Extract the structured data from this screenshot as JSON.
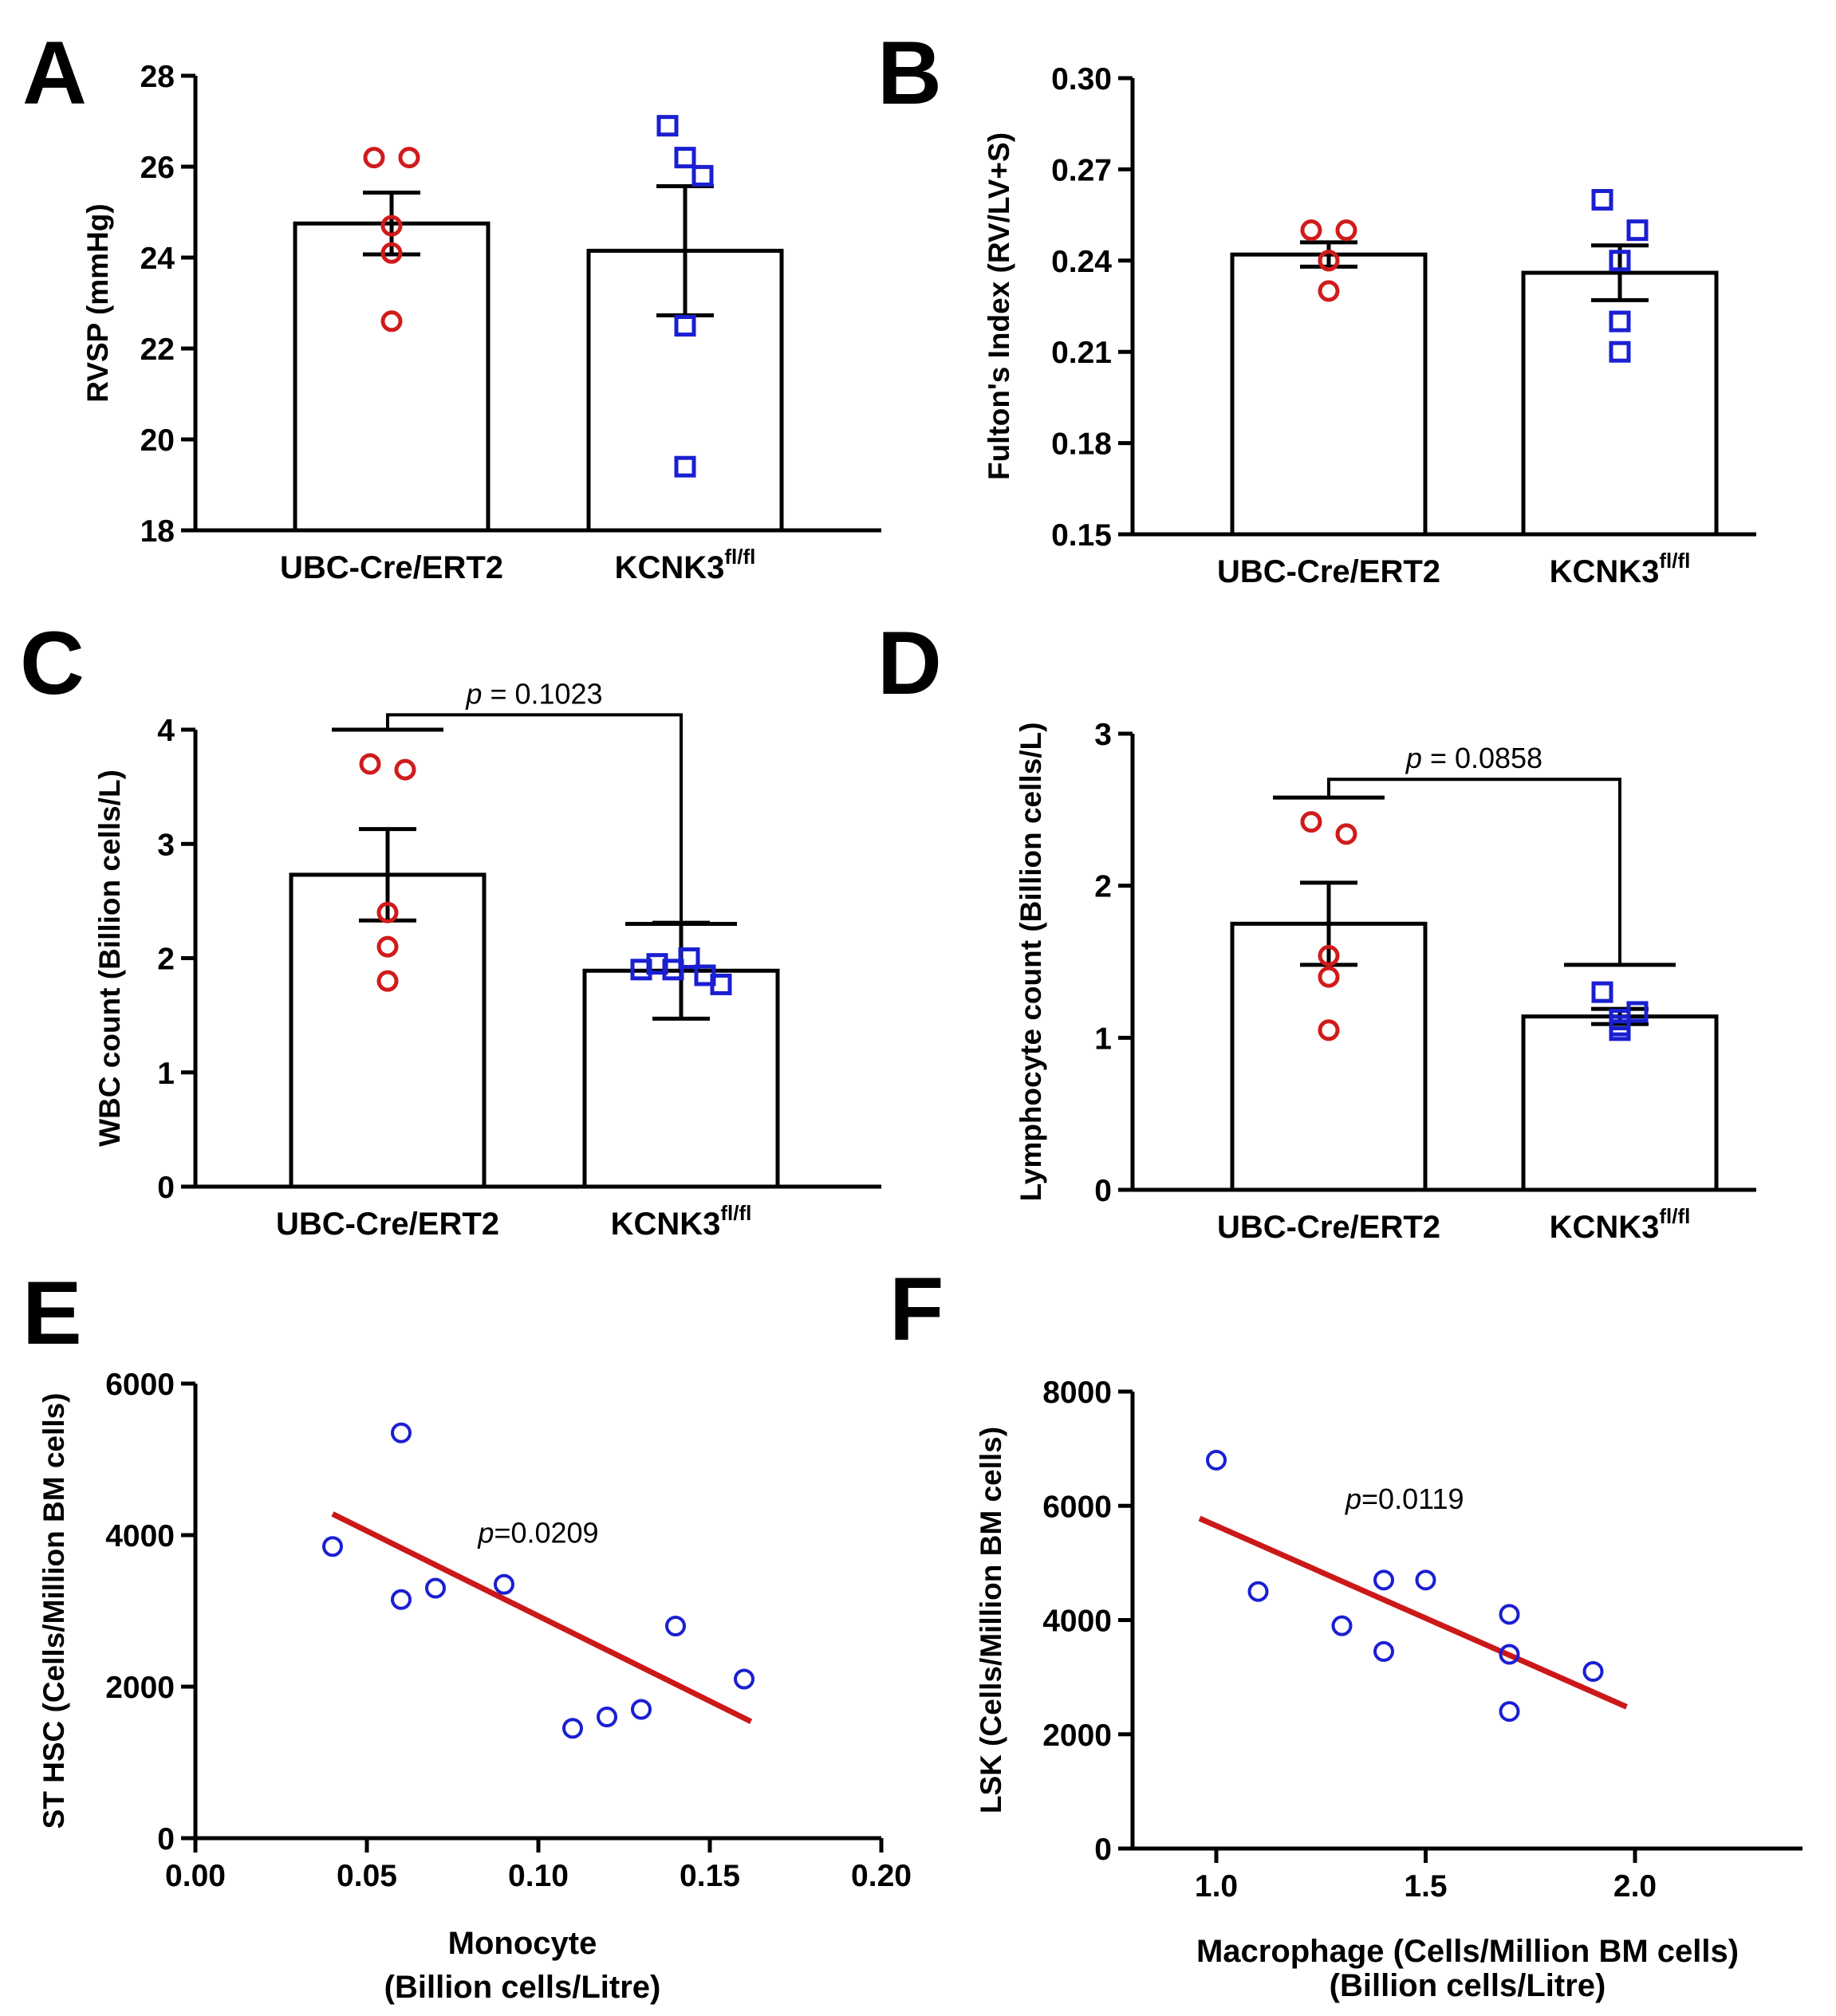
{
  "chart_data": [
    {
      "panel": "A",
      "type": "bar",
      "ylabel": "RVSP (mmHg)",
      "ylim": [
        18,
        28
      ],
      "yticks": [
        "18",
        "20",
        "22",
        "24",
        "26",
        "28"
      ],
      "categories": [
        "UBC-Cre/ERT2",
        "KCNK3"
      ],
      "category_sup": [
        "",
        "fl/fl"
      ],
      "means": [
        24.75,
        24.15
      ],
      "sem": [
        0.68,
        1.42
      ],
      "points": [
        [
          26.2,
          26.2,
          24.7,
          24.1,
          22.6
        ],
        [
          26.9,
          25.8,
          26.2,
          22.5,
          19.4
        ]
      ],
      "colors": [
        "#d01b1b",
        "#1a1fd1"
      ],
      "markers": [
        "circle",
        "square"
      ]
    },
    {
      "panel": "B",
      "type": "bar",
      "ylabel": "Fulton's Index (RV/LV+S)",
      "ylim": [
        0.15,
        0.3
      ],
      "yticks": [
        "0.15",
        "0.18",
        "0.21",
        "0.24",
        "0.27",
        "0.30"
      ],
      "categories": [
        "UBC-Cre/ERT2",
        "KCNK3"
      ],
      "category_sup": [
        "",
        "fl/fl"
      ],
      "means": [
        0.242,
        0.236
      ],
      "sem": [
        0.004,
        0.009
      ],
      "points": [
        [
          0.25,
          0.25,
          0.24,
          0.24,
          0.23
        ],
        [
          0.26,
          0.25,
          0.24,
          0.22,
          0.21
        ]
      ],
      "colors": [
        "#d01b1b",
        "#1a1fd1"
      ],
      "markers": [
        "circle",
        "square"
      ]
    },
    {
      "panel": "C",
      "type": "bar",
      "ylabel": "WBC count (Billion cells/L)",
      "ylim": [
        0,
        4
      ],
      "yticks": [
        "0",
        "1",
        "2",
        "3",
        "4"
      ],
      "categories": [
        "UBC-Cre/ERT2",
        "KCNK3"
      ],
      "category_sup": [
        "",
        "fl/fl"
      ],
      "means": [
        2.73,
        1.89
      ],
      "sem": [
        0.4,
        0.42
      ],
      "points": [
        [
          3.7,
          3.65,
          2.4,
          2.1,
          1.8
        ],
        [
          1.9,
          1.95,
          1.9,
          2.0,
          1.85,
          1.77
        ]
      ],
      "colors": [
        "#d01b1b",
        "#1a1fd1"
      ],
      "markers": [
        "circle",
        "square"
      ],
      "pvalue": "= 0.1023",
      "bracket_y": [
        4.0,
        2.3
      ],
      "bracket_top": 4.13
    },
    {
      "panel": "D",
      "type": "bar",
      "ylabel": "Lymphocyte count (Billion cells/L)",
      "ylim": [
        0,
        3
      ],
      "yticks": [
        "0",
        "1",
        "2",
        "3"
      ],
      "categories": [
        "UBC-Cre/ERT2",
        "KCNK3"
      ],
      "category_sup": [
        "",
        "fl/fl"
      ],
      "means": [
        1.75,
        1.14
      ],
      "sem": [
        0.27,
        0.05
      ],
      "points": [
        [
          2.42,
          2.34,
          1.54,
          1.4,
          1.05
        ],
        [
          1.3,
          1.17,
          1.12,
          1.08,
          1.05
        ]
      ],
      "colors": [
        "#d01b1b",
        "#1a1fd1"
      ],
      "markers": [
        "circle",
        "square"
      ],
      "pvalue": "= 0.0858",
      "bracket_y": [
        2.58,
        1.48
      ],
      "bracket_top": 2.7
    },
    {
      "panel": "E",
      "type": "scatter",
      "ylabel": "ST HSC (Cells/Million BM cells)",
      "xlabel": [
        "Monocyte",
        "(Billion cells/Litre)"
      ],
      "xlim": [
        0,
        0.2
      ],
      "xticks": [
        "0.00",
        "0.05",
        "0.10",
        "0.15",
        "0.20"
      ],
      "ylim": [
        0,
        6000
      ],
      "yticks": [
        "0",
        "2000",
        "4000",
        "6000"
      ],
      "x": [
        0.04,
        0.06,
        0.06,
        0.07,
        0.09,
        0.11,
        0.12,
        0.13,
        0.14,
        0.16
      ],
      "y": [
        3850,
        5350,
        3150,
        3300,
        3350,
        1450,
        1600,
        1700,
        2800,
        2100
      ],
      "fit": [
        [
          0.04,
          4280
        ],
        [
          0.162,
          1540
        ]
      ],
      "pvalue": "=0.0209",
      "pvalue_at": [
        0.1,
        3900
      ]
    },
    {
      "panel": "F",
      "type": "scatter",
      "ylabel": "LSK (Cells/Million BM cells)",
      "xlabel": [
        "Macrophage (Cells/Million BM cells)",
        "(Billion cells/Litre)"
      ],
      "xlim": [
        0.8,
        2.4
      ],
      "xticks": [
        "1.0",
        "1.5",
        "2.0"
      ],
      "xtick_values": [
        1.0,
        1.5,
        2.0
      ],
      "ylim": [
        0,
        8000
      ],
      "yticks": [
        "0",
        "2000",
        "4000",
        "6000",
        "8000"
      ],
      "x": [
        1.0,
        1.1,
        1.3,
        1.4,
        1.4,
        1.5,
        1.7,
        1.7,
        1.7,
        1.9
      ],
      "y": [
        6800,
        4500,
        3900,
        4700,
        3450,
        4700,
        4100,
        3400,
        2400,
        3100
      ],
      "fit": [
        [
          0.96,
          5780
        ],
        [
          1.98,
          2480
        ]
      ],
      "pvalue": "=0.0119",
      "pvalue_at": [
        1.45,
        5950
      ]
    }
  ],
  "p_label": "p"
}
